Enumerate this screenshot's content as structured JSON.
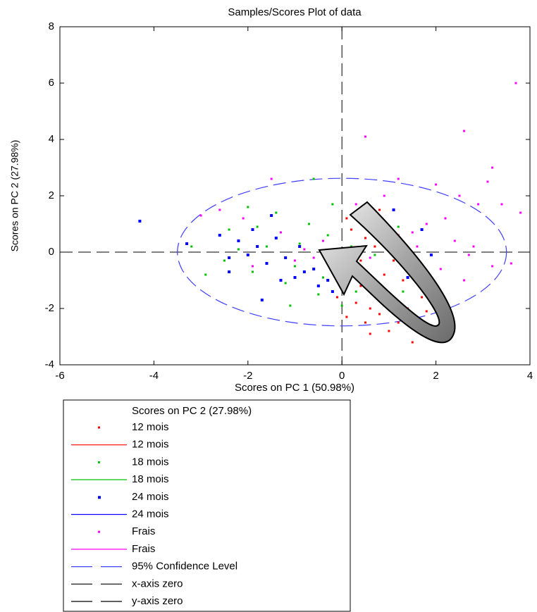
{
  "chart_data": {
    "type": "scatter",
    "title": "Samples/Scores Plot of data",
    "x_label": "Scores on PC 1 (50.98%)",
    "y_label": "Scores on PC 2 (27.98%)",
    "xlim": [
      -6,
      4
    ],
    "ylim": [
      -4,
      8
    ],
    "xticks": [
      -6,
      -4,
      -2,
      0,
      2,
      4
    ],
    "yticks": [
      -4,
      -2,
      0,
      2,
      4,
      6,
      8
    ],
    "series": [
      {
        "name": "12 mois",
        "color": "#ff0000",
        "x": [
          0.2,
          0.4,
          0.6,
          0.8,
          1.0,
          1.2,
          1.5,
          1.4,
          0.9,
          0.3,
          0.1,
          0.5,
          0.7,
          1.1,
          1.3,
          1.7,
          1.9,
          2.0,
          0.2,
          0.0,
          -0.3,
          0.6,
          1.0,
          1.6,
          0.4,
          0.9,
          1.2,
          0.1,
          0.8,
          1.8,
          -0.1,
          0.5
        ],
        "values": [
          -0.5,
          -1.2,
          -2.0,
          -2.2,
          -1.5,
          -2.5,
          -3.2,
          -2.0,
          -0.8,
          -1.8,
          -2.3,
          0.5,
          0.2,
          -0.3,
          -1.0,
          -1.6,
          -2.6,
          -1.2,
          0.8,
          -1.0,
          -0.2,
          -2.9,
          -2.8,
          -0.6,
          -0.3,
          -1.9,
          0.6,
          1.2,
          1.5,
          -2.1,
          -1.6,
          -2.5
        ]
      },
      {
        "name": "18 mois",
        "color": "#00c000",
        "x": [
          -2.9,
          -2.4,
          -2.0,
          -1.6,
          -1.2,
          -1.0,
          -0.7,
          -0.5,
          -0.3,
          0.0,
          0.2,
          0.5,
          0.8,
          1.0,
          1.3,
          1.6,
          2.0,
          2.2,
          -2.5,
          -1.8,
          -1.4,
          -0.9,
          -0.4,
          0.3,
          -1.9,
          -3.2,
          -0.2,
          0.7,
          1.2,
          -1.1,
          -2.2,
          -0.6
        ],
        "values": [
          -0.8,
          0.8,
          1.6,
          0.2,
          -1.1,
          -0.5,
          1.0,
          -1.5,
          0.6,
          -1.9,
          0.2,
          -0.8,
          -1.2,
          0.1,
          -1.4,
          -0.5,
          -1.8,
          -2.0,
          -0.3,
          0.9,
          1.4,
          0.3,
          -0.9,
          -1.4,
          -0.7,
          0.2,
          1.7,
          -0.1,
          0.9,
          -1.9,
          0.1,
          2.6
        ]
      },
      {
        "name": "24 mois",
        "color": "#0000ff",
        "x": [
          -4.3,
          -3.3,
          -2.6,
          -2.4,
          -2.2,
          -2.0,
          -1.8,
          -1.7,
          -1.6,
          -1.4,
          -1.3,
          -1.2,
          -1.0,
          -0.8,
          -0.6,
          -0.5,
          -0.3,
          -0.2,
          0.0,
          0.1,
          0.3,
          0.6,
          0.8,
          1.1,
          1.4,
          1.7,
          1.9,
          -1.9,
          -0.9,
          -2.4,
          0.4,
          -1.5
        ],
        "values": [
          1.1,
          0.3,
          0.6,
          -0.2,
          0.4,
          -0.1,
          0.2,
          -1.7,
          -0.4,
          0.5,
          -1.0,
          -0.2,
          -0.9,
          -0.7,
          -0.6,
          -1.2,
          -1.0,
          -1.4,
          -0.6,
          -0.3,
          -0.8,
          0.8,
          1.2,
          1.5,
          -0.9,
          0.8,
          -0.1,
          0.8,
          0.2,
          -0.7,
          1.1,
          1.3
        ]
      },
      {
        "name": "Frais",
        "color": "#ff00ff",
        "x": [
          3.7,
          2.6,
          0.5,
          3.2,
          3.1,
          2.0,
          1.2,
          2.5,
          2.9,
          3.4,
          3.8,
          2.2,
          1.8,
          1.5,
          2.4,
          2.8,
          3.2,
          3.6,
          2.6,
          2.1,
          1.6,
          1.0,
          0.6,
          -0.4,
          -0.8,
          -1.3,
          -1.5,
          -2.1,
          -2.6,
          -3.0,
          -1.0,
          0.3,
          0.9,
          1.9,
          2.7,
          1.3,
          -0.6,
          -1.9
        ],
        "values": [
          6.0,
          4.3,
          4.1,
          3.0,
          2.5,
          2.4,
          2.6,
          2.0,
          1.7,
          1.7,
          1.4,
          1.2,
          1.0,
          0.7,
          0.4,
          0.2,
          -0.5,
          -0.4,
          -1.0,
          -0.6,
          0.2,
          0.4,
          -0.2,
          0.4,
          0.1,
          0.7,
          2.6,
          1.2,
          1.5,
          1.3,
          -0.3,
          1.7,
          2.0,
          -1.5,
          -0.1,
          -0.4,
          -0.2,
          -0.5
        ]
      }
    ],
    "ellipse": {
      "label": "95% Confidence Level",
      "color": "#4040ff",
      "center": [
        0,
        0
      ],
      "radii": [
        3.5,
        2.62
      ]
    },
    "zero_lines": [
      {
        "label": "x-axis zero",
        "axis": "y",
        "value": 0
      },
      {
        "label": "y-axis zero",
        "axis": "x",
        "value": 0
      }
    ],
    "legend": {
      "title": "Scores on PC 2 (27.98%)"
    }
  }
}
